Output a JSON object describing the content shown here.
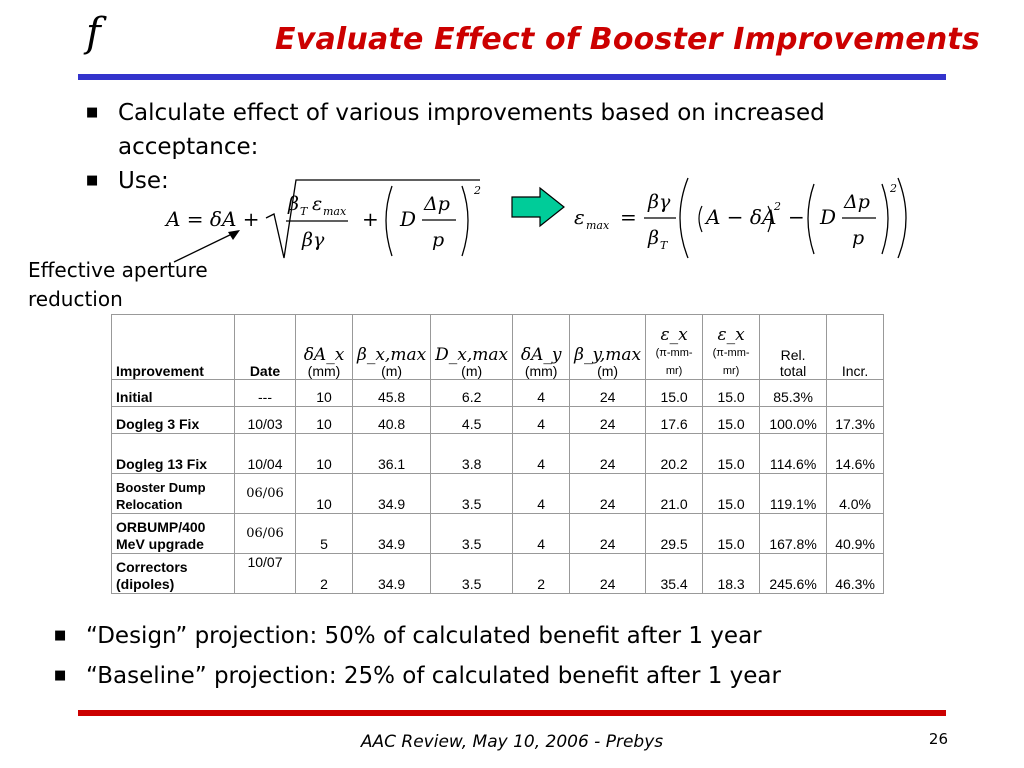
{
  "header": {
    "logo": "f",
    "title": "Evaluate Effect of Booster Improvements"
  },
  "bullets_top": [
    {
      "text": "Calculate effect of various improvements based on increased acceptance:"
    },
    {
      "text": "Use:"
    }
  ],
  "annotation": {
    "line1": "Effective aperture",
    "line2": "reduction"
  },
  "colors": {
    "title": "#cc0000",
    "top_rule": "#3333cc",
    "bottom_rule": "#cc0000",
    "arrow_fill": "#00cc99"
  },
  "table": {
    "headers": [
      {
        "top": "",
        "bottom": "Improvement"
      },
      {
        "top": "",
        "bottom": "Date"
      },
      {
        "top": "δA_x",
        "bottom": "(mm)"
      },
      {
        "top": "β_x,max",
        "bottom": "(m)"
      },
      {
        "top": "D_x,max",
        "bottom": "(m)"
      },
      {
        "top": "δA_y",
        "bottom": "(mm)"
      },
      {
        "top": "β_y,max",
        "bottom": "(m)"
      },
      {
        "top": "ε_x",
        "bottom": "(π-mm-mr)"
      },
      {
        "top": "ε_x",
        "bottom": "(π-mm-mr)"
      },
      {
        "top": "Rel.",
        "bottom": "total"
      },
      {
        "top": "",
        "bottom": "Incr."
      }
    ],
    "rows": [
      {
        "improvement": "Initial",
        "date": "---",
        "dAx": "10",
        "bx": "45.8",
        "dx": "6.2",
        "dAy": "4",
        "by": "24",
        "ex1": "15.0",
        "ex2": "15.0",
        "rel": "85.3%",
        "incr": ""
      },
      {
        "improvement": "Dogleg 3 Fix",
        "date": "10/03",
        "dAx": "10",
        "bx": "40.8",
        "dx": "4.5",
        "dAy": "4",
        "by": "24",
        "ex1": "17.6",
        "ex2": "15.0",
        "rel": "100.0%",
        "incr": "17.3%"
      },
      {
        "improvement": "Dogleg 13 Fix",
        "date": "10/04",
        "dAx": "10",
        "bx": "36.1",
        "dx": "3.8",
        "dAy": "4",
        "by": "24",
        "ex1": "20.2",
        "ex2": "15.0",
        "rel": "114.6%",
        "incr": "14.6%"
      },
      {
        "improvement": "Booster Dump Relocation",
        "date": "06/06",
        "dAx": "10",
        "bx": "34.9",
        "dx": "3.5",
        "dAy": "4",
        "by": "24",
        "ex1": "21.0",
        "ex2": "15.0",
        "rel": "119.1%",
        "incr": "4.0%"
      },
      {
        "improvement": "ORBUMP/400 MeV upgrade",
        "date": "06/06",
        "dAx": "5",
        "bx": "34.9",
        "dx": "3.5",
        "dAy": "4",
        "by": "24",
        "ex1": "29.5",
        "ex2": "15.0",
        "rel": "167.8%",
        "incr": "40.9%"
      },
      {
        "improvement": "Correctors (dipoles)",
        "date": "10/07",
        "dAx": "2",
        "bx": "34.9",
        "dx": "3.5",
        "dAy": "2",
        "by": "24",
        "ex1": "35.4",
        "ex2": "18.3",
        "rel": "245.6%",
        "incr": "46.3%"
      }
    ]
  },
  "bullets_bottom": [
    {
      "text": "“Design” projection: 50% of calculated benefit after 1 year"
    },
    {
      "text": "“Baseline” projection: 25% of calculated benefit after 1 year"
    }
  ],
  "footer": {
    "text": "AAC Review, May 10, 2006 - Prebys",
    "page": "26"
  }
}
